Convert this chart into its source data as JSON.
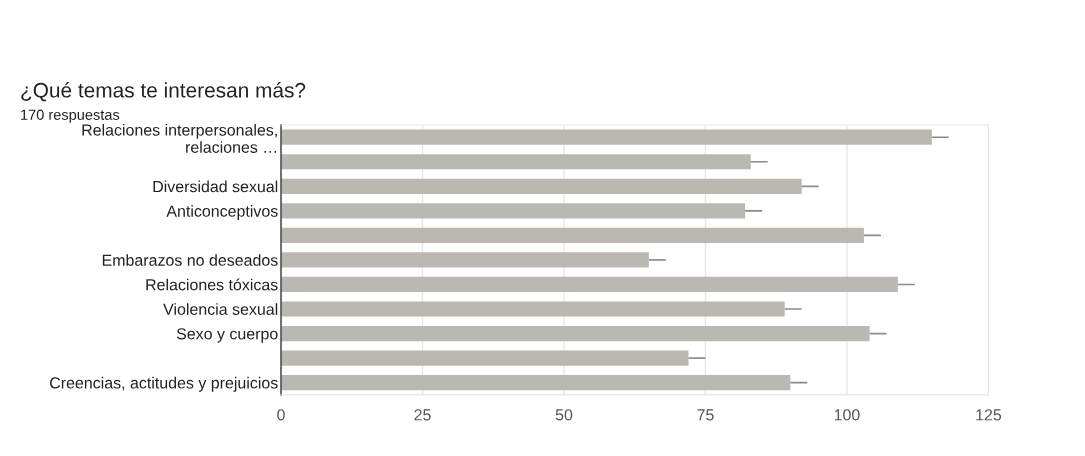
{
  "chart_data": {
    "type": "bar",
    "orientation": "horizontal",
    "title": "¿Qué temas te interesan más?",
    "subtitle": "170 respuestas",
    "categories": [
      "Relaciones interpersonales,\nrelaciones …",
      null,
      "Diversidad sexual",
      "Anticonceptivos",
      null,
      "Embarazos no deseados",
      "Relaciones tóxicas",
      "Violencia sexual",
      "Sexo y cuerpo",
      null,
      "Creencias, actitudes y prejuicios"
    ],
    "values": [
      115,
      83,
      92,
      82,
      103,
      65,
      109,
      89,
      104,
      72,
      90
    ],
    "errors": [
      [
        115,
        118
      ],
      [
        83,
        86
      ],
      [
        92,
        95
      ],
      [
        82,
        85
      ],
      [
        103,
        106
      ],
      [
        65,
        68
      ],
      [
        109,
        112
      ],
      [
        89,
        92
      ],
      [
        104,
        107
      ],
      [
        72,
        75
      ],
      [
        90,
        93
      ]
    ],
    "color": "#bab8b1",
    "xlim": [
      0,
      125
    ],
    "xticks": [
      0,
      25,
      50,
      75,
      100,
      125
    ],
    "grid": "x"
  }
}
